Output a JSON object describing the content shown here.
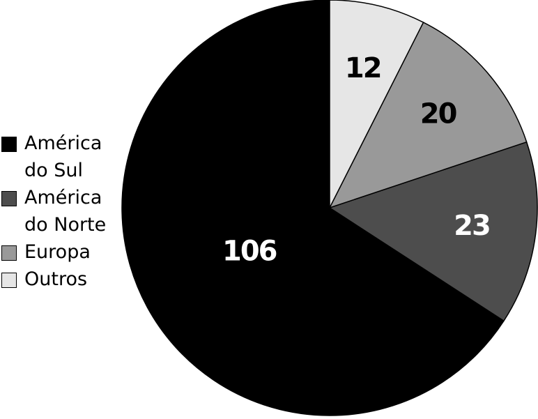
{
  "chart_data": {
    "type": "pie",
    "title": "",
    "categories": [
      "América do Sul",
      "América do Norte",
      "Europa",
      "Outros"
    ],
    "values": [
      106,
      23,
      20,
      12
    ],
    "colors": [
      "#000000",
      "#4d4d4d",
      "#999999",
      "#e6e6e6"
    ],
    "label_colors": [
      "#ffffff",
      "#ffffff",
      "#000000",
      "#000000"
    ],
    "start": "12 o'clock",
    "direction": "counter-clockwise",
    "legend_position": "left"
  }
}
